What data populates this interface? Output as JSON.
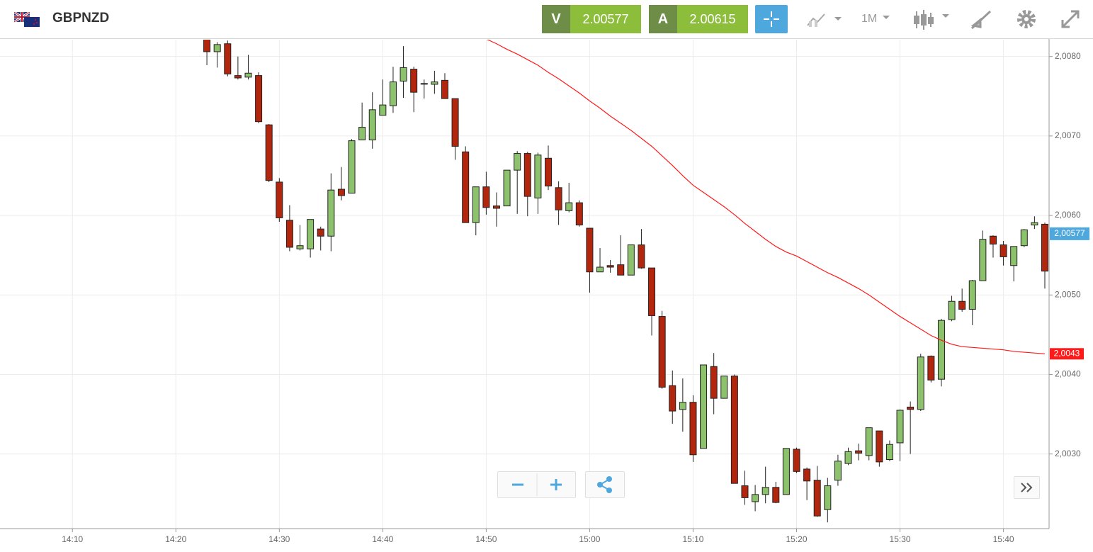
{
  "toolbar": {
    "symbol": "GBPNZD",
    "sell_label": "V",
    "sell_price": 2.00577,
    "buy_label": "A",
    "buy_price": 2.00615,
    "timeframe": "1M"
  },
  "chart_data": {
    "type": "candlestick",
    "x": [
      "14:23",
      "14:24",
      "14:25",
      "14:26",
      "14:27",
      "14:28",
      "14:29",
      "14:30",
      "14:31",
      "14:32",
      "14:33",
      "14:34",
      "14:35",
      "14:36",
      "14:37",
      "14:38",
      "14:39",
      "14:40",
      "14:41",
      "14:42",
      "14:43",
      "14:44",
      "14:45",
      "14:46",
      "14:47",
      "14:48",
      "14:49",
      "14:50",
      "14:51",
      "14:52",
      "14:53",
      "14:54",
      "14:55",
      "14:56",
      "14:57",
      "14:58",
      "14:59",
      "15:00",
      "15:01",
      "15:02",
      "15:03",
      "15:04",
      "15:05",
      "15:06",
      "15:07",
      "15:08",
      "15:09",
      "15:10",
      "15:11",
      "15:12",
      "15:13",
      "15:14",
      "15:15",
      "15:16",
      "15:17",
      "15:18",
      "15:19",
      "15:20",
      "15:21",
      "15:22",
      "15:23",
      "15:24",
      "15:25",
      "15:26",
      "15:27",
      "15:28",
      "15:29",
      "15:30",
      "15:31",
      "15:32",
      "15:33",
      "15:34",
      "15:35",
      "15:36",
      "15:37",
      "15:38",
      "15:39",
      "15:40",
      "15:41",
      "15:42",
      "15:43",
      "15:44"
    ],
    "open": [
      2.0083,
      2.00806,
      2.00816,
      2.00776,
      2.00774,
      2.00776,
      2.00714,
      2.00642,
      2.00594,
      2.00558,
      2.00558,
      2.00583,
      2.00574,
      2.00633,
      2.00628,
      2.00695,
      2.00695,
      2.00726,
      2.00738,
      2.00769,
      2.00784,
      2.00766,
      2.00765,
      2.0077,
      2.00747,
      2.0068,
      2.00591,
      2.00636,
      2.00612,
      2.00612,
      2.00657,
      2.00678,
      2.00622,
      2.00672,
      2.00635,
      2.00606,
      2.00616,
      2.00584,
      2.00529,
      2.00537,
      2.00538,
      2.00525,
      2.00563,
      2.00534,
      2.00473,
      2.00386,
      2.00356,
      2.00365,
      2.00307,
      2.0041,
      2.0037,
      2.00398,
      2.0026,
      2.0024,
      2.00249,
      2.00258,
      2.00249,
      2.00306,
      2.00281,
      2.00267,
      2.0023,
      2.00267,
      2.00288,
      2.00304,
      2.00298,
      2.00329,
      2.00293,
      2.00314,
      2.00359,
      2.00356,
      2.00423,
      2.00394,
      2.00469,
      2.00492,
      2.00482,
      2.00518,
      2.00574,
      2.00563,
      2.00537,
      2.00562,
      2.00588,
      2.00589
    ],
    "high": [
      2.0084,
      2.00818,
      2.0082,
      2.008,
      2.00802,
      2.0078,
      2.00715,
      2.00647,
      2.00613,
      2.00588,
      2.00595,
      2.00586,
      2.00653,
      2.00661,
      2.00696,
      2.00742,
      2.00755,
      2.00771,
      2.00787,
      2.00813,
      2.00787,
      2.00771,
      2.00782,
      2.00779,
      2.00747,
      2.00687,
      2.00636,
      2.00655,
      2.00629,
      2.00657,
      2.00681,
      2.0068,
      2.00679,
      2.00688,
      2.00643,
      2.00641,
      2.00619,
      2.00584,
      2.00559,
      2.00544,
      2.00575,
      2.00563,
      2.00583,
      2.00534,
      2.0048,
      2.00405,
      2.00395,
      2.00374,
      2.00412,
      2.00427,
      2.00398,
      2.004,
      2.00279,
      2.00261,
      2.00284,
      2.00265,
      2.00307,
      2.00308,
      2.00283,
      2.00285,
      2.0027,
      2.00299,
      2.00308,
      2.00313,
      2.00333,
      2.00329,
      2.00317,
      2.00356,
      2.00366,
      2.00426,
      2.00424,
      2.0047,
      2.00499,
      2.00508,
      2.00519,
      2.00581,
      2.00575,
      2.00568,
      2.00561,
      2.00583,
      2.00599,
      2.00591
    ],
    "low": [
      2.00789,
      2.00786,
      2.00775,
      2.00771,
      2.00771,
      2.00716,
      2.00642,
      2.00592,
      2.00555,
      2.00556,
      2.00547,
      2.00556,
      2.00555,
      2.00619,
      2.00628,
      2.00695,
      2.00684,
      2.00726,
      2.00729,
      2.00748,
      2.0073,
      2.00747,
      2.00753,
      2.00747,
      2.0067,
      2.00591,
      2.00575,
      2.00601,
      2.00586,
      2.00612,
      2.00602,
      2.00599,
      2.00602,
      2.00632,
      2.00588,
      2.00604,
      2.00586,
      2.00503,
      2.00529,
      2.00528,
      2.00525,
      2.00525,
      2.00533,
      2.00449,
      2.00382,
      2.00338,
      2.00328,
      2.0029,
      2.00307,
      2.0035,
      2.0037,
      2.00263,
      2.00236,
      2.00228,
      2.00238,
      2.00238,
      2.00249,
      2.00276,
      2.00242,
      2.00221,
      2.00214,
      2.0026,
      2.00286,
      2.00292,
      2.00292,
      2.00284,
      2.00291,
      2.00291,
      2.003,
      2.00354,
      2.0039,
      2.00385,
      2.00467,
      2.00479,
      2.00462,
      2.00518,
      2.00547,
      2.00537,
      2.00517,
      2.0056,
      2.00583,
      2.00508
    ],
    "close": [
      2.00806,
      2.00815,
      2.00778,
      2.00773,
      2.00779,
      2.00718,
      2.00644,
      2.00597,
      2.0056,
      2.00562,
      2.00595,
      2.00574,
      2.00632,
      2.00625,
      2.00694,
      2.00711,
      2.00733,
      2.00739,
      2.00768,
      2.00786,
      2.00755,
      2.00766,
      2.00768,
      2.00747,
      2.00687,
      2.00591,
      2.00636,
      2.0061,
      2.00609,
      2.00657,
      2.00678,
      2.00624,
      2.00676,
      2.00637,
      2.00607,
      2.00616,
      2.00588,
      2.00529,
      2.00535,
      2.00535,
      2.00525,
      2.00563,
      2.00534,
      2.00474,
      2.00384,
      2.00354,
      2.00365,
      2.00299,
      2.00412,
      2.0037,
      2.00398,
      2.00263,
      2.00245,
      2.00249,
      2.00258,
      2.00239,
      2.00307,
      2.00278,
      2.00266,
      2.00222,
      2.0026,
      2.00291,
      2.00303,
      2.00301,
      2.00333,
      2.0029,
      2.00312,
      2.00355,
      2.00356,
      2.00422,
      2.00393,
      2.00468,
      2.00492,
      2.00482,
      2.00518,
      2.0057,
      2.00564,
      2.00548,
      2.00561,
      2.00582,
      2.00591,
      2.0053
    ],
    "up_color": "#8dc26c",
    "down_color": "#b3260e",
    "ma": {
      "color": "#ff1a1a",
      "last_label": "2,0043",
      "values": [
        null,
        null,
        null,
        null,
        null,
        null,
        null,
        null,
        null,
        null,
        null,
        null,
        null,
        null,
        null,
        null,
        null,
        null,
        null,
        null,
        null,
        null,
        null,
        null,
        null,
        null,
        null,
        2.00822,
        2.00816,
        2.00809,
        2.00803,
        2.00796,
        2.00789,
        2.0078,
        2.00772,
        2.00763,
        2.00754,
        2.00744,
        2.00735,
        2.00725,
        2.00716,
        2.00707,
        2.00697,
        2.00687,
        2.00675,
        2.00663,
        2.0065,
        2.00638,
        2.00629,
        2.0062,
        2.00611,
        2.00601,
        2.0059,
        2.0058,
        2.0057,
        2.00561,
        2.00554,
        2.00549,
        2.00542,
        2.00535,
        2.00528,
        2.00522,
        2.00515,
        2.00508,
        2.005,
        2.00491,
        2.00482,
        2.00473,
        2.00465,
        2.00457,
        2.00449,
        2.00443,
        2.00438,
        2.00435,
        2.00434,
        2.00433,
        2.00432,
        2.00431,
        2.00429,
        2.00428,
        2.00427,
        2.00426
      ]
    },
    "bid_marker": {
      "value": 2.00577,
      "label": "2,00577",
      "color": "#4ea8de"
    },
    "xlim": [
      "14:03",
      "15:44"
    ],
    "xticks": [
      "14:10",
      "14:20",
      "14:30",
      "14:40",
      "14:50",
      "15:00",
      "15:10",
      "15:20",
      "15:30",
      "15:40"
    ],
    "ylim": [
      2.00207,
      2.00822
    ],
    "yticks": [
      {
        "value": 2.003,
        "label": "2,0030"
      },
      {
        "value": 2.004,
        "label": "2,0040"
      },
      {
        "value": 2.005,
        "label": "2,0050"
      },
      {
        "value": 2.006,
        "label": "2,0060"
      },
      {
        "value": 2.007,
        "label": "2,0070"
      },
      {
        "value": 2.008,
        "label": "2,0080"
      }
    ],
    "grid": true
  }
}
